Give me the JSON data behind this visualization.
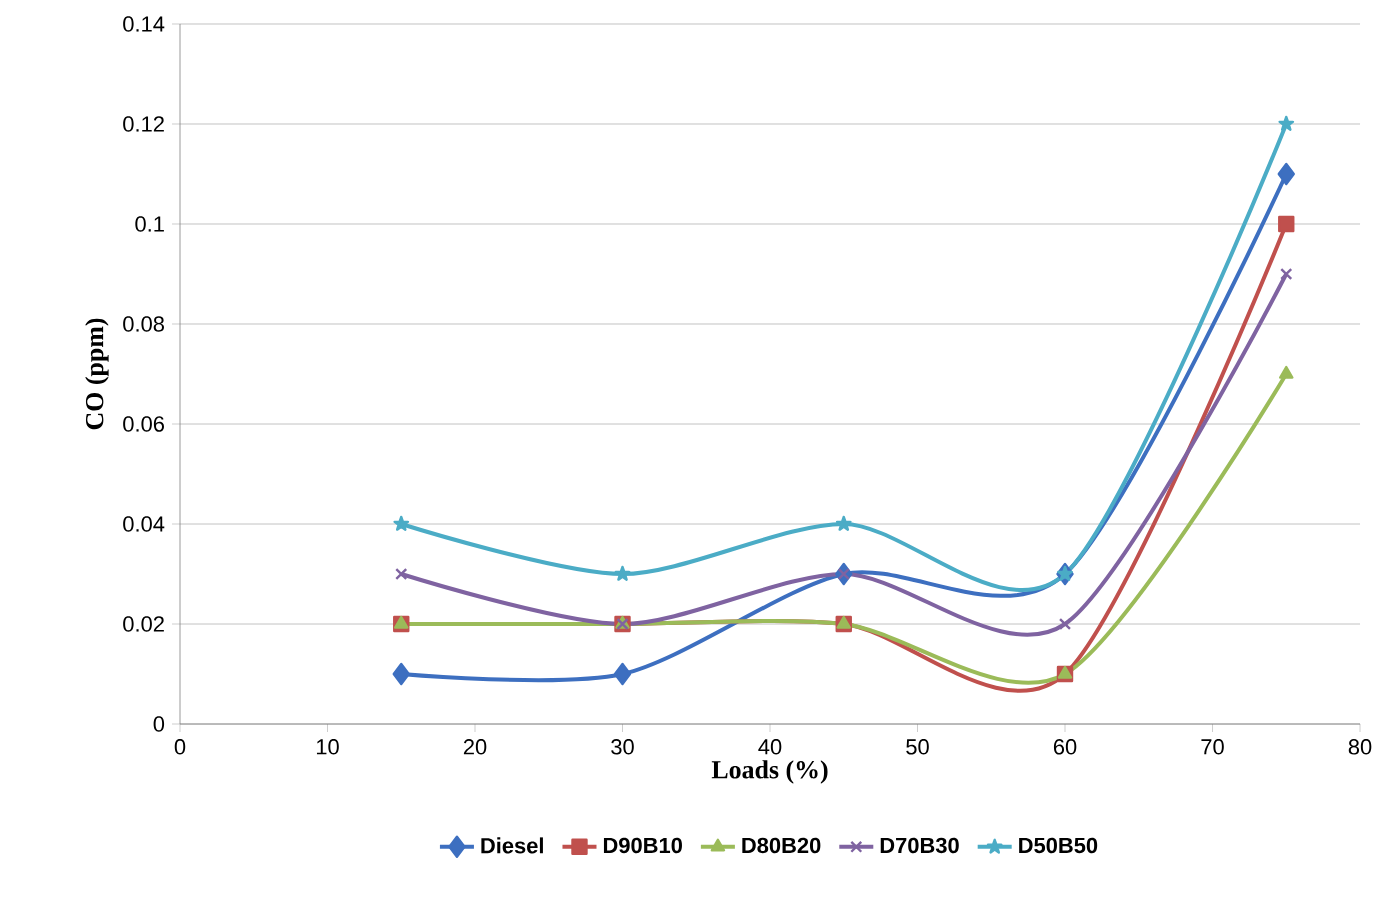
{
  "chart_data": {
    "type": "line",
    "xlabel": "Loads (%)",
    "ylabel": "CO (ppm)",
    "x": [
      15,
      30,
      45,
      60,
      75
    ],
    "series": [
      {
        "name": "Diesel",
        "color": "#3d6fc0",
        "marker": "diamond",
        "values": [
          0.01,
          0.01,
          0.03,
          0.03,
          0.11
        ]
      },
      {
        "name": "D90B10",
        "color": "#c0504d",
        "marker": "square",
        "values": [
          0.02,
          0.02,
          0.02,
          0.01,
          0.1
        ]
      },
      {
        "name": "D80B20",
        "color": "#9bbb59",
        "marker": "triangle",
        "values": [
          0.02,
          0.02,
          0.02,
          0.01,
          0.07
        ]
      },
      {
        "name": "D70B30",
        "color": "#7f63a1",
        "marker": "cross",
        "values": [
          0.03,
          0.02,
          0.03,
          0.02,
          0.09
        ]
      },
      {
        "name": "D50B50",
        "color": "#4bacc6",
        "marker": "star",
        "values": [
          0.04,
          0.03,
          0.04,
          0.03,
          0.12
        ]
      }
    ],
    "xlim": [
      0,
      80
    ],
    "xticks": [
      0,
      10,
      20,
      30,
      40,
      50,
      60,
      70,
      80
    ],
    "ylim": [
      0,
      0.14
    ],
    "yticks": [
      0,
      0.02,
      0.04,
      0.06,
      0.08,
      0.1,
      0.12,
      0.14
    ],
    "grid": "y",
    "legend": "bottom",
    "line_style": "solid"
  }
}
